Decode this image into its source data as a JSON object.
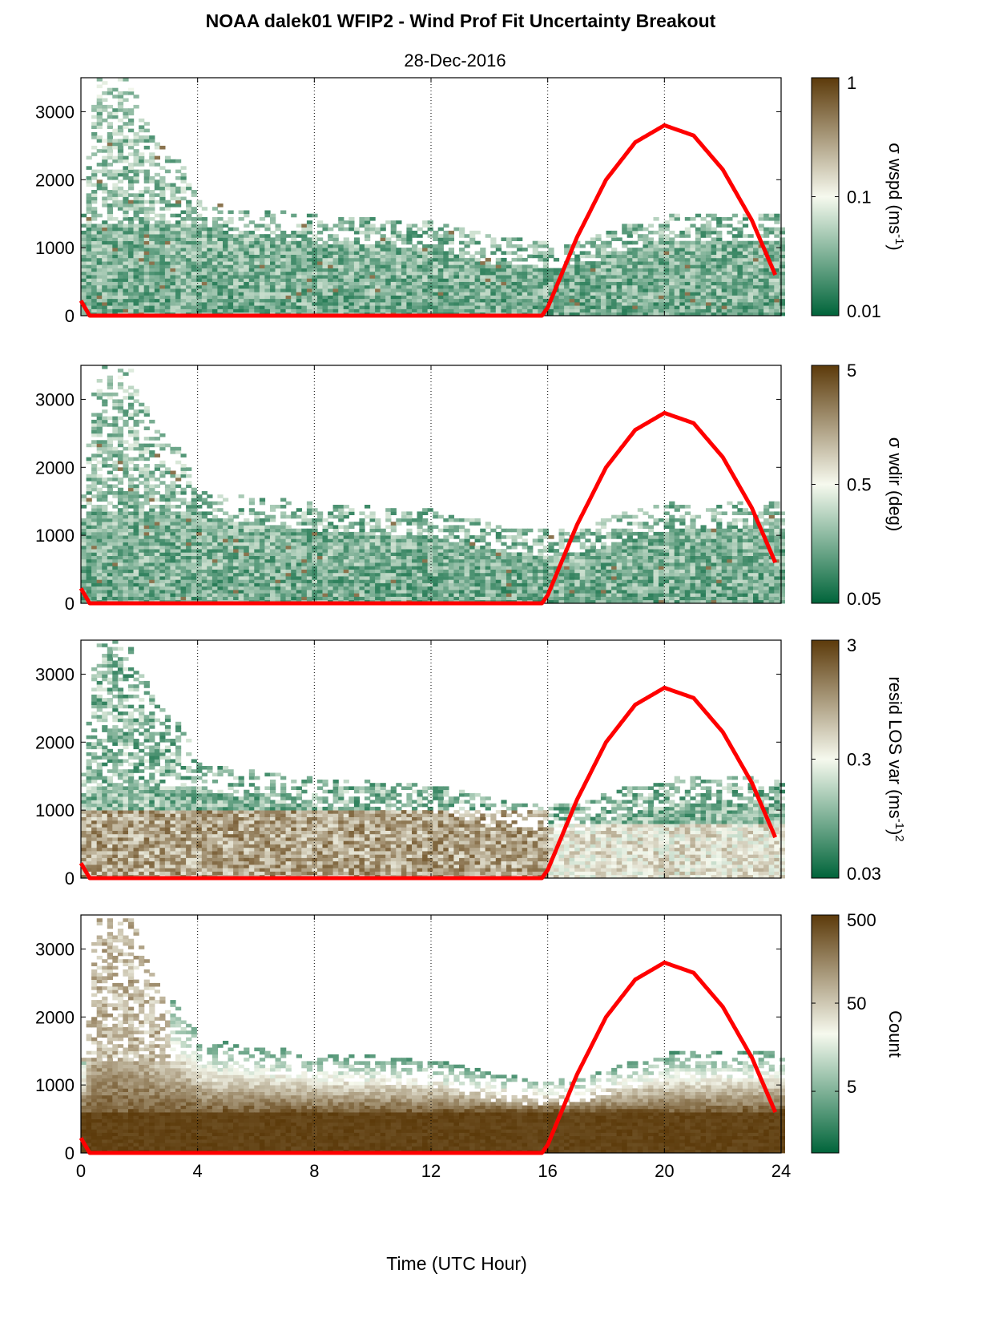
{
  "figure": {
    "title": "NOAA dalek01 WFIP2 - Wind Prof Fit Uncertainty Breakout",
    "subtitle": "28-Dec-2016",
    "xlabel": "Time (UTC Hour)",
    "colors": {
      "dark_green": "#00643a",
      "light": "#f6f9ee",
      "dark_brown": "#5c3a0a",
      "sun_curve": "#ff0000"
    }
  },
  "chart_data": [
    {
      "type": "heatmap",
      "panel": "wspd",
      "title": "",
      "xlabel": "",
      "ylabel": "",
      "xlim": [
        0,
        24
      ],
      "ylim": [
        0,
        3500
      ],
      "x_ticks": [
        "0",
        "4",
        "8",
        "12",
        "16",
        "20",
        "24"
      ],
      "y_ticks": [
        "0",
        "1000",
        "2000",
        "3000"
      ],
      "grid": "vertical dotted at 4, 8, 12, 16, 20",
      "colorbar": {
        "label": "σ wspd (ms",
        "label_sup": "-1",
        "label_tail": ")",
        "scale": "log",
        "tick_labels": [
          "1",
          "0.1",
          "0.01"
        ],
        "ticks": [
          1,
          0.1,
          0.01
        ],
        "range": [
          0.01,
          1
        ]
      },
      "data_top_m": [
        [
          0,
          1400
        ],
        [
          0.5,
          3500
        ],
        [
          1.5,
          3400
        ],
        [
          2.5,
          2400
        ],
        [
          3.5,
          2000
        ],
        [
          4,
          1500
        ],
        [
          6,
          1400
        ],
        [
          8,
          1300
        ],
        [
          10,
          1250
        ],
        [
          12,
          1200
        ],
        [
          14,
          1000
        ],
        [
          16,
          900
        ],
        [
          17,
          900
        ],
        [
          18,
          1100
        ],
        [
          20,
          1300
        ],
        [
          22,
          1300
        ],
        [
          24,
          1300
        ]
      ],
      "sun_elevation_curve": [
        [
          0,
          220
        ],
        [
          0.3,
          0
        ],
        [
          15.8,
          0
        ],
        [
          16,
          120
        ],
        [
          17,
          1150
        ],
        [
          18,
          2000
        ],
        [
          19,
          2550
        ],
        [
          20,
          2800
        ],
        [
          21,
          2650
        ],
        [
          22,
          2150
        ],
        [
          23,
          1400
        ],
        [
          23.85,
          550
        ]
      ]
    },
    {
      "type": "heatmap",
      "panel": "wdir",
      "title": "",
      "xlabel": "",
      "ylabel": "",
      "xlim": [
        0,
        24
      ],
      "ylim": [
        0,
        3500
      ],
      "x_ticks": [
        "0",
        "4",
        "8",
        "12",
        "16",
        "20",
        "24"
      ],
      "y_ticks": [
        "0",
        "1000",
        "2000",
        "3000"
      ],
      "grid": "vertical dotted at 4, 8, 12, 16, 20",
      "colorbar": {
        "label": "σ wdir (deg)",
        "label_sup": "",
        "label_tail": "",
        "scale": "log",
        "tick_labels": [
          "5",
          "0.5",
          "0.05"
        ],
        "ticks": [
          5,
          0.5,
          0.05
        ],
        "range": [
          0.05,
          5
        ]
      },
      "data_top_m": [
        [
          0,
          1400
        ],
        [
          0.5,
          3500
        ],
        [
          1.5,
          3400
        ],
        [
          2.5,
          2400
        ],
        [
          3.5,
          2000
        ],
        [
          4,
          1500
        ],
        [
          6,
          1400
        ],
        [
          8,
          1300
        ],
        [
          10,
          1250
        ],
        [
          12,
          1200
        ],
        [
          14,
          1000
        ],
        [
          16,
          900
        ],
        [
          17,
          900
        ],
        [
          18,
          1100
        ],
        [
          20,
          1300
        ],
        [
          22,
          1300
        ],
        [
          24,
          1300
        ]
      ],
      "sun_elevation_curve": [
        [
          0,
          220
        ],
        [
          0.3,
          0
        ],
        [
          15.8,
          0
        ],
        [
          16,
          120
        ],
        [
          17,
          1150
        ],
        [
          18,
          2000
        ],
        [
          19,
          2550
        ],
        [
          20,
          2800
        ],
        [
          21,
          2650
        ],
        [
          22,
          2150
        ],
        [
          23,
          1400
        ],
        [
          23.85,
          550
        ]
      ]
    },
    {
      "type": "heatmap",
      "panel": "resid",
      "title": "",
      "xlabel": "",
      "ylabel": "",
      "xlim": [
        0,
        24
      ],
      "ylim": [
        0,
        3500
      ],
      "x_ticks": [
        "0",
        "4",
        "8",
        "12",
        "16",
        "20",
        "24"
      ],
      "y_ticks": [
        "0",
        "1000",
        "2000",
        "3000"
      ],
      "grid": "vertical dotted at 4, 8, 12, 16, 20",
      "colorbar": {
        "label": "resid LOS var (ms",
        "label_sup": "-1",
        "label_tail": ")",
        "label_sup2": "2",
        "scale": "log",
        "tick_labels": [
          "3",
          "0.3",
          "0.03"
        ],
        "ticks": [
          3,
          0.3,
          0.03
        ],
        "range": [
          0.03,
          3
        ]
      },
      "data_top_m": [
        [
          0,
          1400
        ],
        [
          0.5,
          3500
        ],
        [
          1.5,
          3400
        ],
        [
          2.5,
          2400
        ],
        [
          3.5,
          2000
        ],
        [
          4,
          1500
        ],
        [
          6,
          1400
        ],
        [
          8,
          1300
        ],
        [
          10,
          1250
        ],
        [
          12,
          1200
        ],
        [
          14,
          1000
        ],
        [
          16,
          900
        ],
        [
          17,
          900
        ],
        [
          18,
          1100
        ],
        [
          20,
          1300
        ],
        [
          22,
          1300
        ],
        [
          24,
          1300
        ]
      ],
      "sun_elevation_curve": [
        [
          0,
          220
        ],
        [
          0.3,
          0
        ],
        [
          15.8,
          0
        ],
        [
          16,
          120
        ],
        [
          17,
          1150
        ],
        [
          18,
          2000
        ],
        [
          19,
          2550
        ],
        [
          20,
          2800
        ],
        [
          21,
          2650
        ],
        [
          22,
          2150
        ],
        [
          23,
          1400
        ],
        [
          23.85,
          550
        ]
      ]
    },
    {
      "type": "heatmap",
      "panel": "count",
      "title": "",
      "xlabel": "Time (UTC Hour)",
      "ylabel": "",
      "xlim": [
        0,
        24
      ],
      "ylim": [
        0,
        3500
      ],
      "x_ticks": [
        "0",
        "4",
        "8",
        "12",
        "16",
        "20",
        "24"
      ],
      "y_ticks": [
        "0",
        "1000",
        "2000",
        "3000"
      ],
      "grid": "vertical dotted at 4, 8, 12, 16, 20",
      "colorbar": {
        "label": "Count",
        "label_sup": "",
        "label_tail": "",
        "scale": "log",
        "tick_labels": [
          "500",
          "50",
          "5"
        ],
        "ticks": [
          500,
          50,
          5
        ],
        "range": [
          1,
          500
        ]
      },
      "data_top_m": [
        [
          0,
          1400
        ],
        [
          0.5,
          3500
        ],
        [
          1.5,
          3400
        ],
        [
          2.5,
          2400
        ],
        [
          3.5,
          2000
        ],
        [
          4,
          1500
        ],
        [
          6,
          1400
        ],
        [
          8,
          1300
        ],
        [
          10,
          1250
        ],
        [
          12,
          1200
        ],
        [
          14,
          1000
        ],
        [
          16,
          900
        ],
        [
          17,
          900
        ],
        [
          18,
          1100
        ],
        [
          20,
          1300
        ],
        [
          22,
          1300
        ],
        [
          24,
          1300
        ]
      ],
      "sun_elevation_curve": [
        [
          0,
          220
        ],
        [
          0.3,
          0
        ],
        [
          15.8,
          0
        ],
        [
          16,
          120
        ],
        [
          17,
          1150
        ],
        [
          18,
          2000
        ],
        [
          19,
          2550
        ],
        [
          20,
          2800
        ],
        [
          21,
          2650
        ],
        [
          22,
          2150
        ],
        [
          23,
          1400
        ],
        [
          23.85,
          550
        ]
      ]
    }
  ]
}
